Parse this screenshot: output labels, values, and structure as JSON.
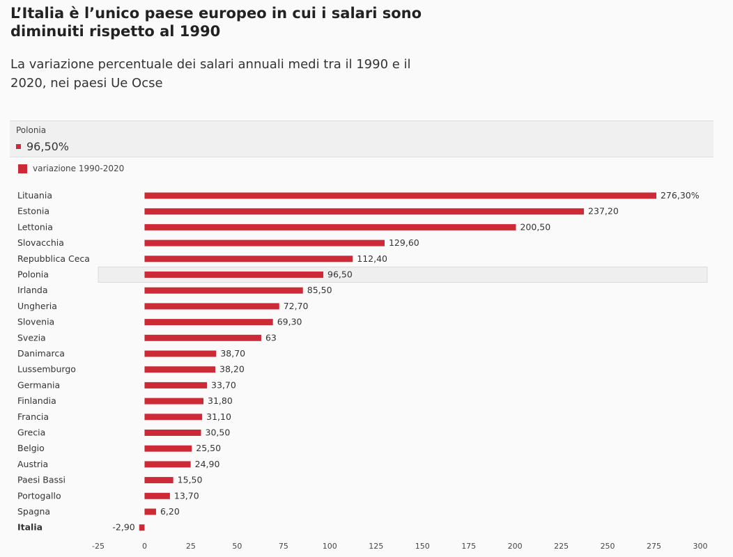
{
  "title": "L’Italia è l’unico paese europeo in cui i salari sono diminuiti rispetto al 1990",
  "subtitle": "La variazione percentuale dei salari annuali medi tra il 1990 e il 2020, nei paesi Ue Ocse",
  "tooltip": {
    "category": "Polonia",
    "value": "96,50%"
  },
  "colors": {
    "bar": "#cc2a36",
    "highlight_bg": "#efefef",
    "highlight_border": "#d9d9d9"
  },
  "chart_data": {
    "type": "bar",
    "orientation": "horizontal",
    "title": "L’Italia è l’unico paese europeo in cui i salari sono diminuiti rispetto al 1990",
    "subtitle": "La variazione percentuale dei salari annuali medi tra il 1990 e il 2020, nei paesi Ue Ocse",
    "legend": {
      "placement": "top-left"
    },
    "series": [
      {
        "name": "variazione 1990-2020",
        "values": [
          276.3,
          237.2,
          200.5,
          129.6,
          112.4,
          96.5,
          85.5,
          72.7,
          69.3,
          63,
          38.7,
          38.2,
          33.7,
          31.8,
          31.1,
          30.5,
          25.5,
          24.9,
          15.5,
          13.7,
          6.2,
          -2.9
        ],
        "labels": [
          "276,30%",
          "237,20",
          "200,50",
          "129,60",
          "112,40",
          "96,50",
          "85,50",
          "72,70",
          "69,30",
          "63",
          "38,70",
          "38,20",
          "33,70",
          "31,80",
          "31,10",
          "30,50",
          "25,50",
          "24,90",
          "15,50",
          "13,70",
          "6,20",
          "-2,90"
        ]
      }
    ],
    "categories": [
      "Lituania",
      "Estonia",
      "Lettonia",
      "Slovacchia",
      "Repubblica Ceca",
      "Polonia",
      "Irlanda",
      "Ungheria",
      "Slovenia",
      "Svezia",
      "Danimarca",
      "Lussemburgo",
      "Germania",
      "Finlandia",
      "Francia",
      "Grecia",
      "Belgio",
      "Austria",
      "Paesi Bassi",
      "Portogallo",
      "Spagna",
      "Italia"
    ],
    "bold_category": "Italia",
    "highlighted_category": "Polonia",
    "xlim": [
      -25,
      300
    ],
    "x_ticks": [
      -25,
      0,
      25,
      50,
      75,
      100,
      125,
      150,
      175,
      200,
      225,
      250,
      275,
      300
    ],
    "grid": false
  }
}
